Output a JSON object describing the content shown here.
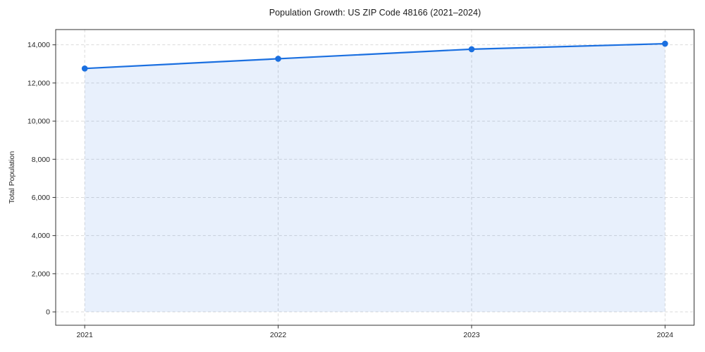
{
  "figure": {
    "background": "#ffffff"
  },
  "chart_data": {
    "type": "line",
    "title": "Population Growth: US ZIP Code 48166 (2021–2024)",
    "xlabel": "",
    "ylabel": "Total Population",
    "x": [
      2021,
      2022,
      2023,
      2024
    ],
    "xticks": [
      "2021",
      "2022",
      "2023",
      "2024"
    ],
    "series": [
      {
        "name": "Total Population",
        "values": [
          12760,
          13270,
          13770,
          14060
        ]
      }
    ],
    "area_fill_to_zero": true,
    "yticks": [
      0,
      2000,
      4000,
      6000,
      8000,
      10000,
      12000,
      14000
    ],
    "ytick_labels": [
      "0",
      "2,000",
      "4,000",
      "6,000",
      "8,000",
      "10,000",
      "12,000",
      "14,000"
    ],
    "ylim": [
      -700,
      14800
    ],
    "xlim": [
      2020.85,
      2024.15
    ],
    "grid": true,
    "grid_style": "dashed",
    "legend_position": "none",
    "colors": {
      "line": "#1a6fe0",
      "marker": "#1a6fe0",
      "area": "#1a6fe0",
      "area_opacity": 0.1,
      "grid": "#d9d9d9",
      "spine": "#333333",
      "tick_text": "#262626",
      "title_text": "#1a1a1a"
    }
  }
}
